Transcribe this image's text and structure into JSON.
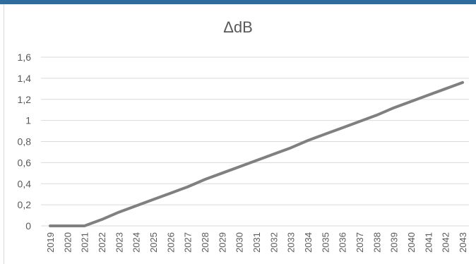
{
  "chart_data": {
    "type": "line",
    "title": "ΔdB",
    "xlabel": "",
    "ylabel": "",
    "ylim": [
      0,
      1.6
    ],
    "y_ticks": [
      "0",
      "0,2",
      "0,4",
      "0,6",
      "0,8",
      "1",
      "1,2",
      "1,4",
      "1,6"
    ],
    "y_tick_values": [
      0,
      0.2,
      0.4,
      0.6,
      0.8,
      1.0,
      1.2,
      1.4,
      1.6
    ],
    "x": [
      "2019",
      "2020",
      "2021",
      "2022",
      "2023",
      "2024",
      "2025",
      "2026",
      "2027",
      "2028",
      "2029",
      "2030",
      "2031",
      "2032",
      "2033",
      "2034",
      "2035",
      "2036",
      "2037",
      "2038",
      "2039",
      "2040",
      "2041",
      "2042",
      "2043"
    ],
    "series": [
      {
        "values": [
          0,
          0,
          0,
          0.06,
          0.13,
          0.19,
          0.25,
          0.31,
          0.37,
          0.44,
          0.5,
          0.56,
          0.62,
          0.68,
          0.74,
          0.81,
          0.87,
          0.93,
          0.99,
          1.05,
          1.12,
          1.18,
          1.24,
          1.3,
          1.36
        ]
      }
    ],
    "grid": true,
    "legend": "none",
    "line_color": "#808080",
    "grid_color": "#d9d9d9"
  }
}
